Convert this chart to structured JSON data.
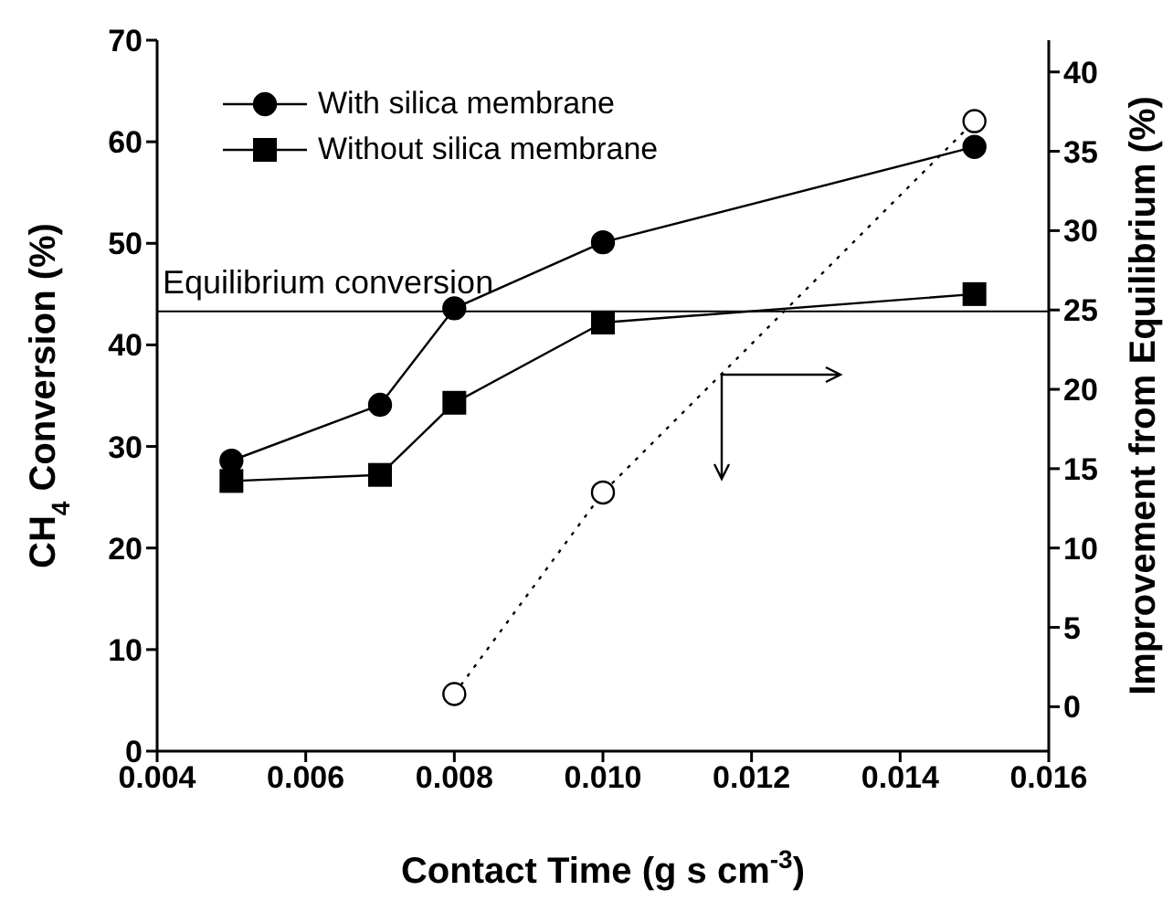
{
  "chart_data": {
    "type": "line",
    "xlabel": "Contact Time (g s cm$^{-3}$)",
    "ylabel": "CH$_{4}$ Conversion (%)",
    "y2label": "Improvement from Equilibrium (%)",
    "xlim": [
      0.004,
      0.016
    ],
    "xticks": [
      0.004,
      0.006,
      0.008,
      {
        "value": 0.01,
        "label": "0.010"
      },
      0.012,
      0.014,
      0.016
    ],
    "ylim": [
      0,
      70
    ],
    "yticks": [
      0,
      10,
      20,
      30,
      40,
      50,
      60,
      70
    ],
    "y2lim": [
      -2.8,
      42
    ],
    "y2ticks": [
      0,
      5,
      10,
      15,
      20,
      25,
      30,
      35,
      40
    ],
    "grid": false,
    "legend": "top left",
    "ref_lines": [
      {
        "axis": "y",
        "value": 43.3,
        "label": "Equilibrium conversion",
        "color": "#000000",
        "line_style": "solid"
      }
    ],
    "series": [
      {
        "name": "With silica membrane",
        "color": "#000000",
        "marker": "circle",
        "line_style": "solid",
        "x": [
          0.005,
          0.007,
          0.008,
          0.01,
          0.015
        ],
        "values": [
          28.6,
          34.1,
          43.6,
          50.1,
          59.5
        ]
      },
      {
        "name": "Without silica membrane",
        "color": "#000000",
        "marker": "square",
        "line_style": "solid",
        "x": [
          0.005,
          0.007,
          0.008,
          0.01,
          0.015
        ],
        "values": [
          26.6,
          27.2,
          34.3,
          42.2,
          45.0
        ]
      },
      {
        "color": "#000000",
        "marker": "circle",
        "line_style": "dotted",
        "axis": "y2",
        "x": [
          0.008,
          0.01,
          0.015
        ],
        "values": [
          0.8,
          13.5,
          36.9
        ]
      }
    ]
  }
}
